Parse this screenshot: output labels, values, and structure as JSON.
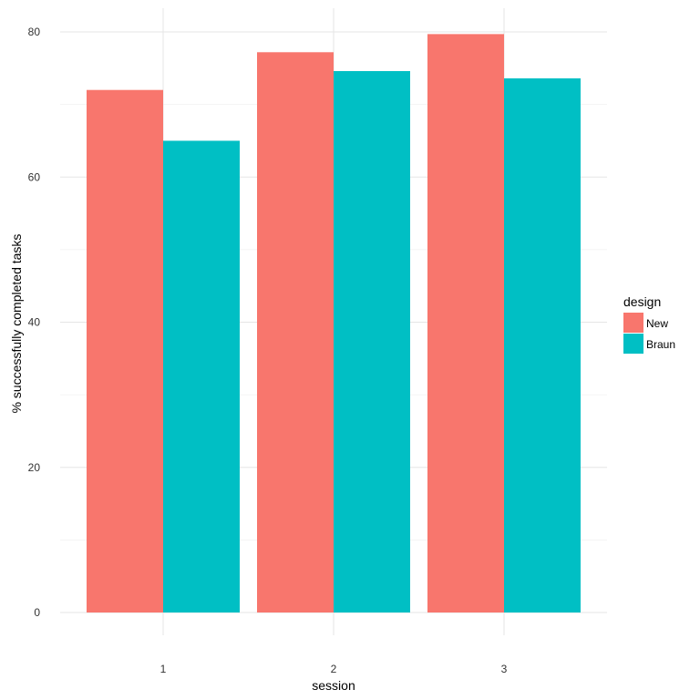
{
  "chart_data": {
    "type": "bar",
    "title": "",
    "xlabel": "session",
    "ylabel": "% successfully completed tasks",
    "categories": [
      "1",
      "2",
      "3"
    ],
    "series": [
      {
        "name": "New",
        "color": "#F8766D",
        "values": [
          72.0,
          77.2,
          79.7
        ]
      },
      {
        "name": "Braun",
        "color": "#00BFC4",
        "values": [
          65.0,
          74.6,
          73.6
        ]
      }
    ],
    "ylim": [
      0,
      80
    ],
    "yticks": [
      0,
      20,
      40,
      60,
      80
    ],
    "ytick_labels": [
      "0",
      "20",
      "40",
      "60",
      "80"
    ],
    "grid": true,
    "legend": {
      "title": "design",
      "position": "right"
    }
  }
}
